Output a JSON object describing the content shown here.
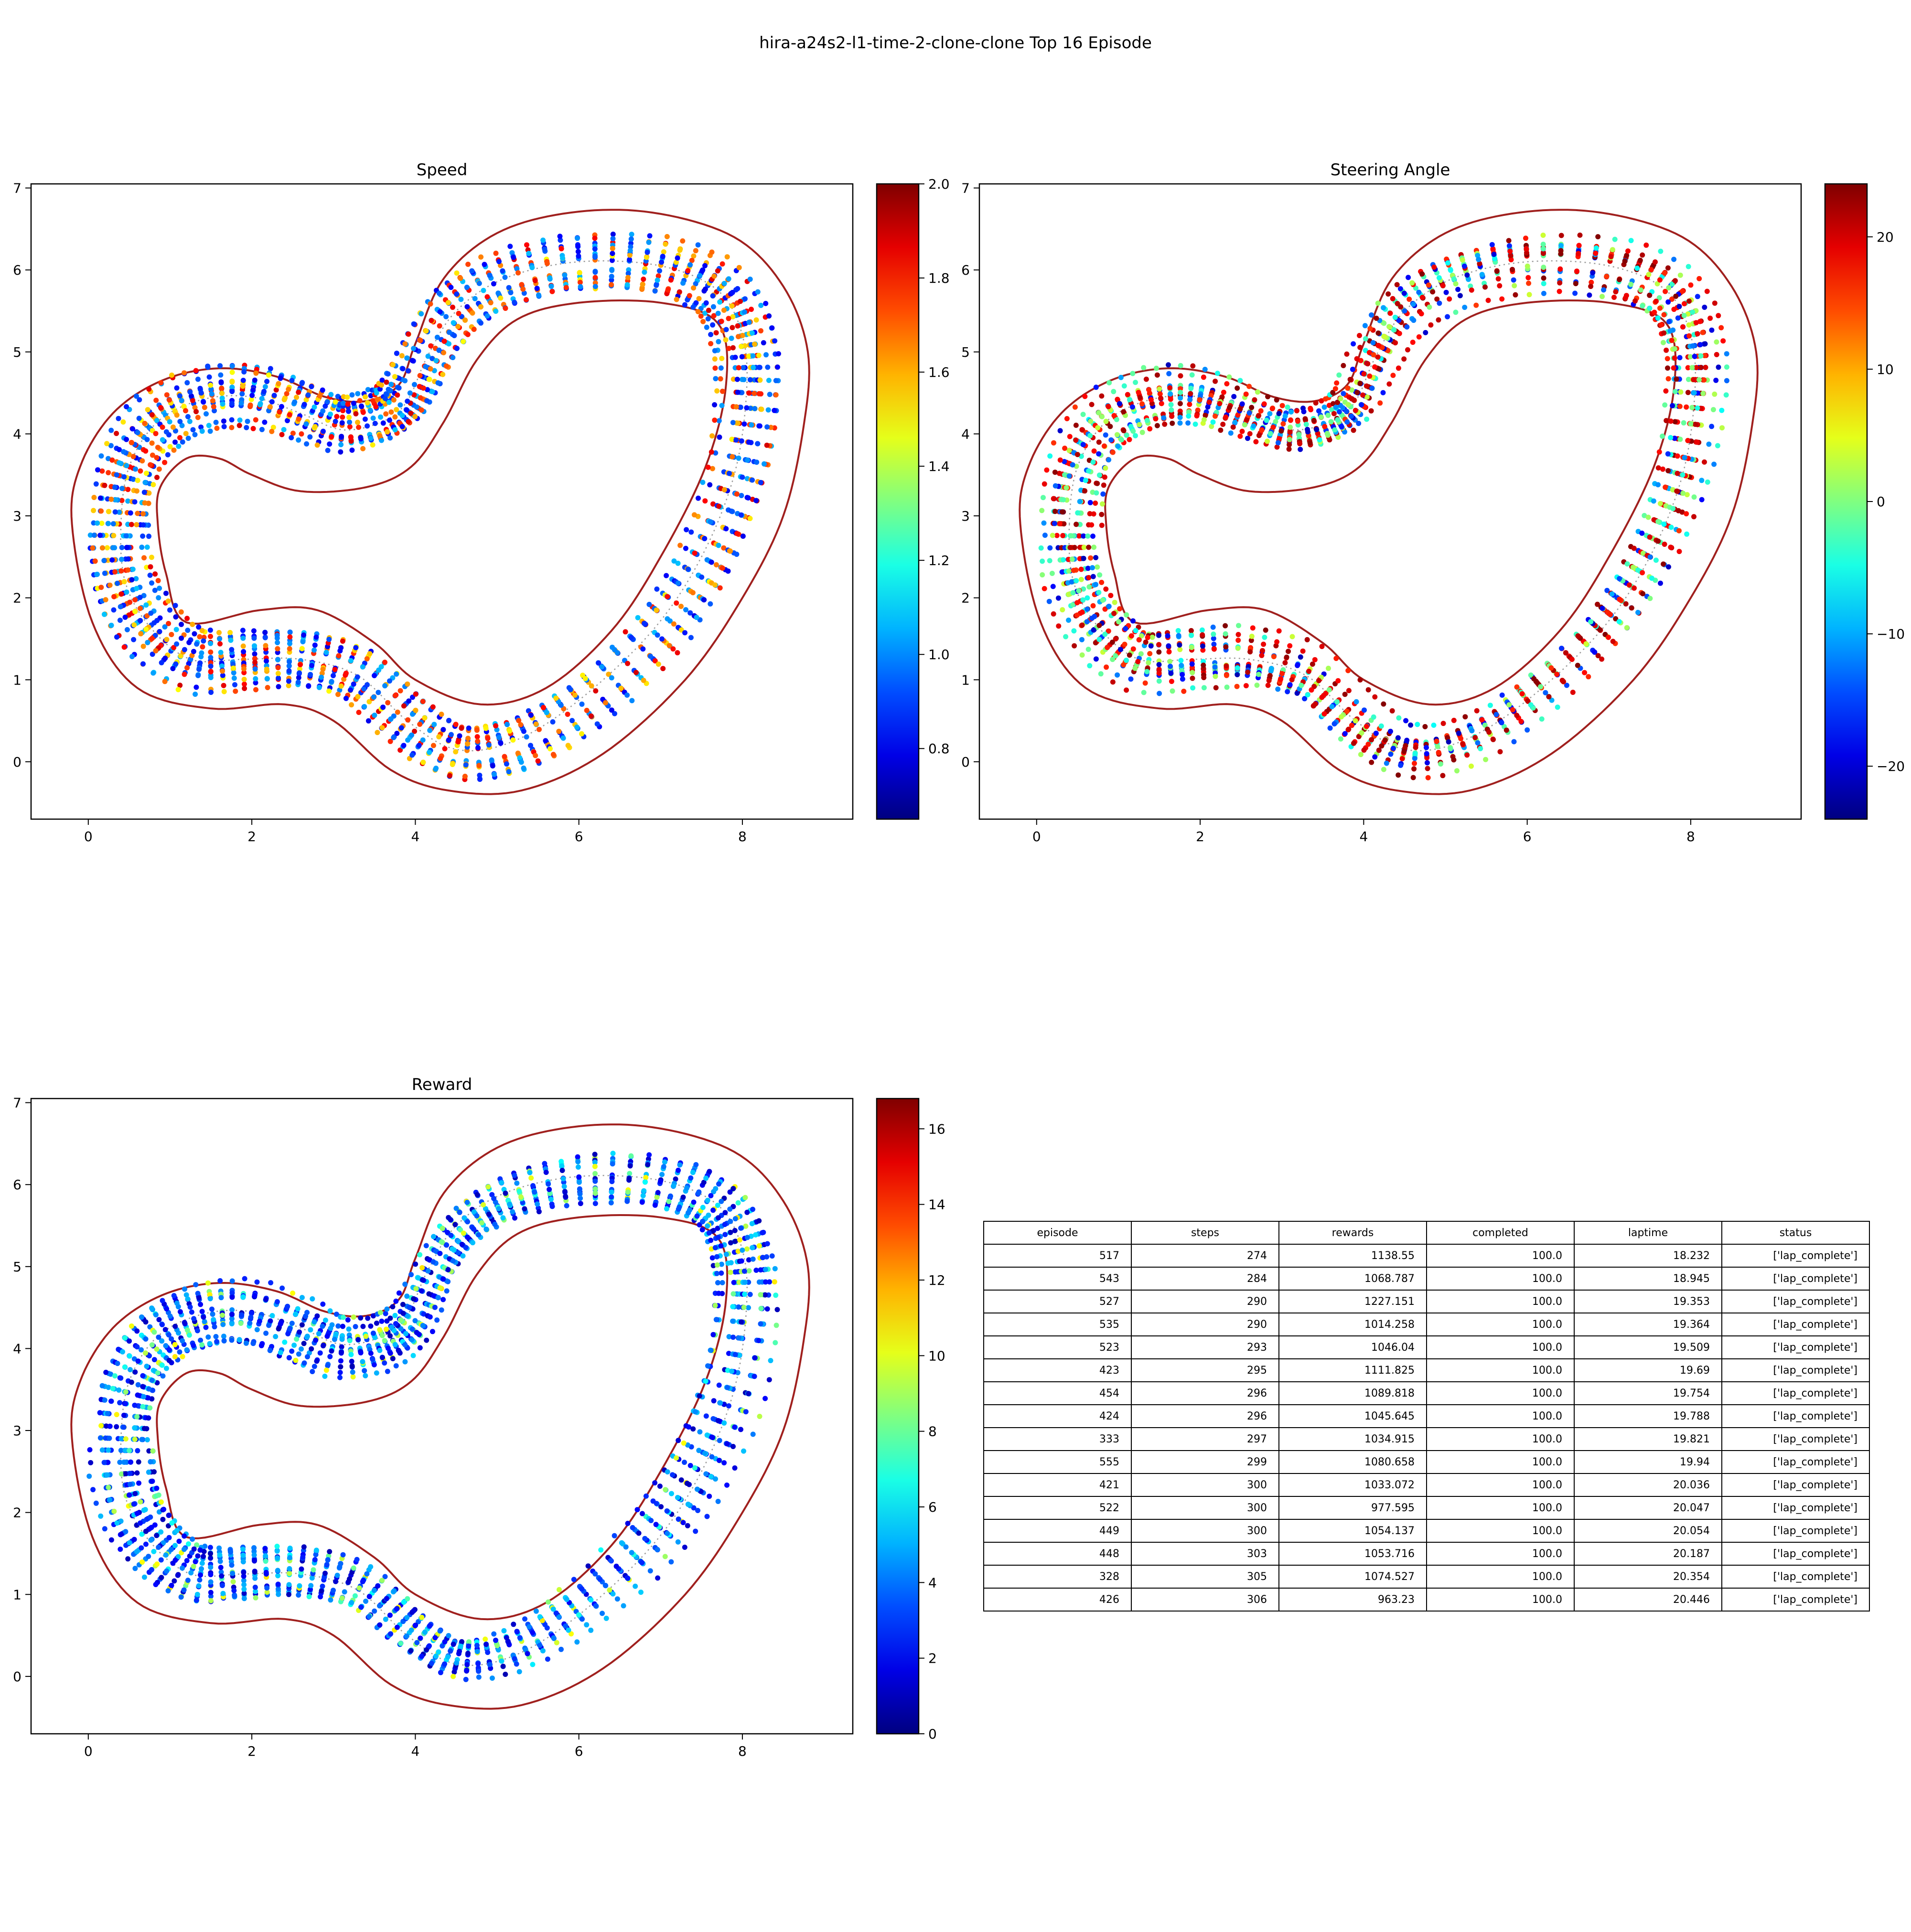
{
  "figure": {
    "title": "hira-a24s2-l1-time-2-clone-clone Top 16 Episode"
  },
  "chart_data": [
    {
      "type": "scatter",
      "title": "Speed",
      "xlabel": "",
      "ylabel": "",
      "xlim": [
        -0.7,
        9.35
      ],
      "ylim": [
        -0.7,
        7.05
      ],
      "x_ticks": [
        0,
        2,
        4,
        6,
        8
      ],
      "y_ticks": [
        0,
        1,
        2,
        3,
        4,
        5,
        6,
        7
      ],
      "colormap": "jet",
      "colorbar": {
        "range": [
          0.65,
          2.0
        ],
        "ticks": [
          0.8,
          1.0,
          1.2,
          1.4,
          1.6,
          1.8,
          2.0
        ],
        "tick_labels": [
          "0.8",
          "1.0",
          "1.2",
          "1.4",
          "1.6",
          "1.8",
          "2.0"
        ]
      },
      "track_color": "#a0201e",
      "point_color_summary": "mix of dark blue and orange, with scattered green points",
      "value_range": [
        0.65,
        2.0
      ]
    },
    {
      "type": "scatter",
      "title": "Steering Angle",
      "xlabel": "",
      "ylabel": "",
      "xlim": [
        -0.7,
        9.35
      ],
      "ylim": [
        -0.7,
        7.05
      ],
      "x_ticks": [
        0,
        2,
        4,
        6,
        8
      ],
      "y_ticks": [
        0,
        1,
        2,
        3,
        4,
        5,
        6,
        7
      ],
      "colormap": "jet",
      "colorbar": {
        "range": [
          -24,
          24
        ],
        "ticks": [
          -20,
          -10,
          0,
          10,
          20
        ],
        "tick_labels": [
          "−20",
          "−10",
          "0",
          "10",
          "20"
        ]
      },
      "track_color": "#a0201e",
      "point_color_summary": "red and green dominant, blue on the straights",
      "value_range": [
        -24,
        24
      ]
    },
    {
      "type": "scatter",
      "title": "Reward",
      "xlabel": "",
      "ylabel": "",
      "xlim": [
        -0.7,
        9.35
      ],
      "ylim": [
        -0.7,
        7.05
      ],
      "x_ticks": [
        0,
        2,
        4,
        6,
        8
      ],
      "y_ticks": [
        0,
        1,
        2,
        3,
        4,
        5,
        6,
        7
      ],
      "colormap": "jet",
      "colorbar": {
        "range": [
          0,
          16.8
        ],
        "ticks": [
          0,
          2,
          4,
          6,
          8,
          10,
          12,
          14,
          16
        ],
        "tick_labels": [
          "0",
          "2",
          "4",
          "6",
          "8",
          "10",
          "12",
          "14",
          "16"
        ]
      },
      "track_color": "#a0201e",
      "point_color_summary": "mostly dark blue to cyan, a few green/yellow points",
      "value_range": [
        0,
        16.8
      ]
    },
    {
      "type": "table",
      "columns": [
        "episode",
        "steps",
        "rewards",
        "completed",
        "laptime",
        "status"
      ],
      "rows": [
        [
          "517",
          "274",
          "1138.55",
          "100.0",
          "18.232",
          "['lap_complete']"
        ],
        [
          "543",
          "284",
          "1068.787",
          "100.0",
          "18.945",
          "['lap_complete']"
        ],
        [
          "527",
          "290",
          "1227.151",
          "100.0",
          "19.353",
          "['lap_complete']"
        ],
        [
          "535",
          "290",
          "1014.258",
          "100.0",
          "19.364",
          "['lap_complete']"
        ],
        [
          "523",
          "293",
          "1046.04",
          "100.0",
          "19.509",
          "['lap_complete']"
        ],
        [
          "423",
          "295",
          "1111.825",
          "100.0",
          "19.69",
          "['lap_complete']"
        ],
        [
          "454",
          "296",
          "1089.818",
          "100.0",
          "19.754",
          "['lap_complete']"
        ],
        [
          "424",
          "296",
          "1045.645",
          "100.0",
          "19.788",
          "['lap_complete']"
        ],
        [
          "333",
          "297",
          "1034.915",
          "100.0",
          "19.821",
          "['lap_complete']"
        ],
        [
          "555",
          "299",
          "1080.658",
          "100.0",
          "19.94",
          "['lap_complete']"
        ],
        [
          "421",
          "300",
          "1033.072",
          "100.0",
          "20.036",
          "['lap_complete']"
        ],
        [
          "522",
          "300",
          "977.595",
          "100.0",
          "20.047",
          "['lap_complete']"
        ],
        [
          "449",
          "300",
          "1054.137",
          "100.0",
          "20.054",
          "['lap_complete']"
        ],
        [
          "448",
          "303",
          "1053.716",
          "100.0",
          "20.187",
          "['lap_complete']"
        ],
        [
          "328",
          "305",
          "1074.527",
          "100.0",
          "20.354",
          "['lap_complete']"
        ],
        [
          "426",
          "306",
          "963.23",
          "100.0",
          "20.446",
          "['lap_complete']"
        ]
      ]
    }
  ],
  "track": {
    "center": [
      [
        0.4,
        2.9
      ],
      [
        0.5,
        3.6
      ],
      [
        0.85,
        4.15
      ],
      [
        1.4,
        4.42
      ],
      [
        2.0,
        4.45
      ],
      [
        2.6,
        4.25
      ],
      [
        3.1,
        4.05
      ],
      [
        3.6,
        4.15
      ],
      [
        3.9,
        4.4
      ],
      [
        4.15,
        4.95
      ],
      [
        4.5,
        5.5
      ],
      [
        5.1,
        5.9
      ],
      [
        6.0,
        6.1
      ],
      [
        7.0,
        6.05
      ],
      [
        7.7,
        5.75
      ],
      [
        8.0,
        5.2
      ],
      [
        8.05,
        4.5
      ],
      [
        7.9,
        3.5
      ],
      [
        7.5,
        2.5
      ],
      [
        6.9,
        1.6
      ],
      [
        6.0,
        0.75
      ],
      [
        5.2,
        0.25
      ],
      [
        4.5,
        0.15
      ],
      [
        3.9,
        0.5
      ],
      [
        3.3,
        1.05
      ],
      [
        2.6,
        1.25
      ],
      [
        1.9,
        1.25
      ],
      [
        1.25,
        1.25
      ],
      [
        0.75,
        1.65
      ],
      [
        0.45,
        2.2
      ]
    ],
    "outer": [
      [
        -0.2,
        2.9
      ],
      [
        -0.1,
        3.6
      ],
      [
        0.3,
        4.25
      ],
      [
        0.9,
        4.65
      ],
      [
        1.6,
        4.8
      ],
      [
        2.3,
        4.7
      ],
      [
        2.9,
        4.45
      ],
      [
        3.4,
        4.4
      ],
      [
        3.8,
        4.6
      ],
      [
        4.0,
        5.1
      ],
      [
        4.35,
        5.9
      ],
      [
        5.0,
        6.45
      ],
      [
        5.9,
        6.7
      ],
      [
        6.9,
        6.7
      ],
      [
        7.9,
        6.4
      ],
      [
        8.5,
        5.8
      ],
      [
        8.8,
        5.0
      ],
      [
        8.75,
        4.1
      ],
      [
        8.5,
        3.0
      ],
      [
        8.0,
        2.0
      ],
      [
        7.3,
        1.0
      ],
      [
        6.3,
        0.1
      ],
      [
        5.3,
        -0.35
      ],
      [
        4.4,
        -0.35
      ],
      [
        3.7,
        -0.1
      ],
      [
        3.0,
        0.5
      ],
      [
        2.4,
        0.7
      ],
      [
        1.5,
        0.65
      ],
      [
        0.6,
        0.9
      ],
      [
        0.05,
        1.7
      ]
    ],
    "inner": [
      [
        0.85,
        2.9
      ],
      [
        0.88,
        3.35
      ],
      [
        1.2,
        3.7
      ],
      [
        1.6,
        3.7
      ],
      [
        2.0,
        3.5
      ],
      [
        2.6,
        3.3
      ],
      [
        3.4,
        3.35
      ],
      [
        3.95,
        3.6
      ],
      [
        4.35,
        4.15
      ],
      [
        4.75,
        4.9
      ],
      [
        5.25,
        5.4
      ],
      [
        6.0,
        5.6
      ],
      [
        7.0,
        5.6
      ],
      [
        7.7,
        5.35
      ],
      [
        7.8,
        4.6
      ],
      [
        7.55,
        3.6
      ],
      [
        7.0,
        2.5
      ],
      [
        6.4,
        1.6
      ],
      [
        5.6,
        0.9
      ],
      [
        4.8,
        0.7
      ],
      [
        4.0,
        1.0
      ],
      [
        3.5,
        1.45
      ],
      [
        2.8,
        1.85
      ],
      [
        2.1,
        1.85
      ],
      [
        1.2,
        1.7
      ],
      [
        0.95,
        2.3
      ]
    ]
  }
}
